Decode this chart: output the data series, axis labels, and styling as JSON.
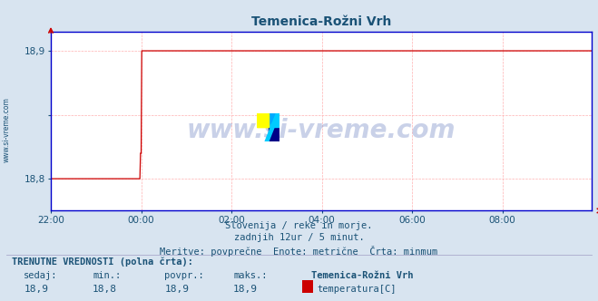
{
  "title": "Temenica-Rožni Vrh",
  "bg_color": "#d8e4f0",
  "plot_bg_color": "#ffffff",
  "line_color": "#cc0000",
  "grid_color": "#ffb0b0",
  "axis_color": "#0000cc",
  "text_color": "#1a5276",
  "watermark": "www.si-vreme.com",
  "subtitle1": "Slovenija / reke in morje.",
  "subtitle2": "zadnjih 12ur / 5 minut.",
  "subtitle3": "Meritve: povprečne  Enote: metrične  Črta: minmum",
  "label_trenutne": "TRENUTNE VREDNOSTI (polna črta):",
  "col_sedaj": "sedaj:",
  "col_min": "min.:",
  "col_povpr": "povpr.:",
  "col_maks": "maks.:",
  "station": "Temenica-Rožni Vrh",
  "legend_label": "temperatura[C]",
  "val_sedaj": "18,9",
  "val_min": "18,8",
  "val_povpr": "18,9",
  "val_maks": "18,9",
  "ylim_min": 18.775,
  "ylim_max": 18.915,
  "yticks": [
    18.8,
    18.85,
    18.9
  ],
  "ytick_labels": [
    "18,8",
    "",
    "18,9"
  ],
  "xtick_labels": [
    "22:00",
    "00:00",
    "02:00",
    "04:00",
    "06:00",
    "08:00"
  ],
  "xtick_positions": [
    0,
    144,
    288,
    432,
    576,
    720
  ],
  "total_points": 864,
  "jump_index": 145,
  "val_before": 18.8,
  "val_after": 18.9,
  "ylabel_text": "www.si-vreme.com",
  "legend_color": "#cc0000",
  "logo_yellow": "#ffff00",
  "logo_blue": "#00aaff",
  "logo_dark": "#000088",
  "watermark_color": "#8899cc",
  "watermark_alpha": 0.45
}
